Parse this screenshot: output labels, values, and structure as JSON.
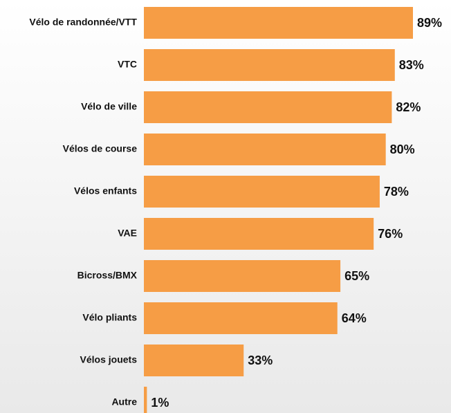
{
  "chart_data": {
    "type": "bar",
    "orientation": "horizontal",
    "color": "#f69d45",
    "categories": [
      "Vélo de randonnée/VTT",
      "VTC",
      "Vélo de ville",
      "Vélos de course",
      "Vélos enfants",
      "VAE",
      "Bicross/BMX",
      "Vélo pliants",
      "Vélos jouets",
      "Autre"
    ],
    "values": [
      89,
      83,
      82,
      80,
      78,
      76,
      65,
      64,
      33,
      1
    ],
    "value_labels": [
      "89%",
      "83%",
      "82%",
      "80%",
      "78%",
      "76%",
      "65%",
      "64%",
      "33%",
      "1%"
    ]
  }
}
